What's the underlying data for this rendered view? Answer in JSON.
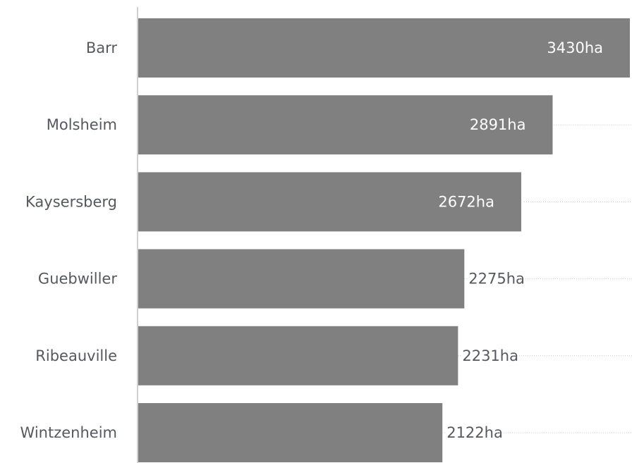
{
  "chart_data": {
    "type": "bar",
    "orientation": "horizontal",
    "categories": [
      "Barr",
      "Molsheim",
      "Kaysersberg",
      "Guebwiller",
      "Ribeauville",
      "Wintzenheim"
    ],
    "values": [
      3430,
      2891,
      2672,
      2275,
      2231,
      2122
    ],
    "value_suffix": "ha",
    "title": "",
    "xlabel": "",
    "ylabel": "",
    "xlim": [
      0,
      3430
    ],
    "grid": false,
    "legend": "none",
    "colors": {
      "bar": "#808080",
      "axis": "#d0d0d0",
      "leader": "#c8c8c8",
      "category_text": "#55595f",
      "label_inside": "#ffffff",
      "label_outside": "#55595f"
    }
  }
}
